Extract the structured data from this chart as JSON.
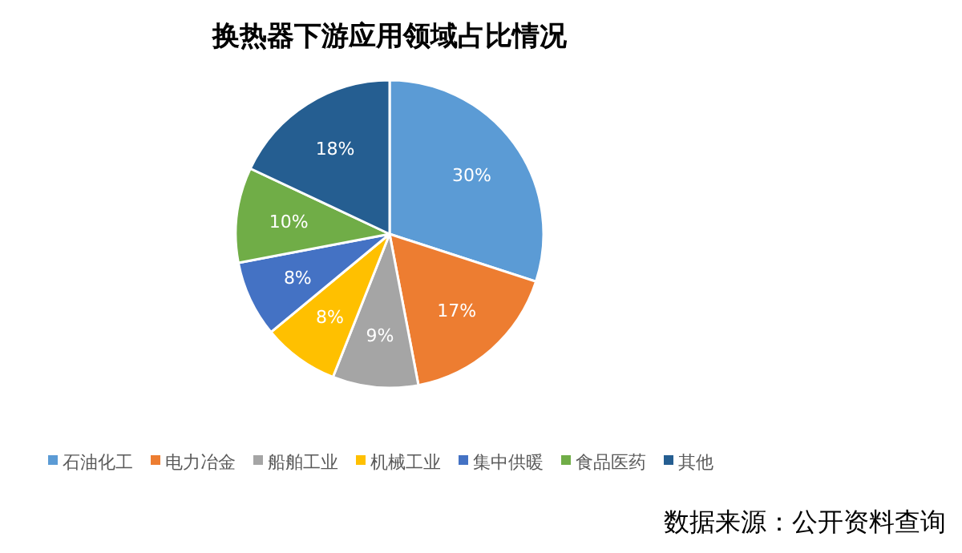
{
  "chart_data": {
    "type": "pie",
    "title": "换热器下游应用领域占比情况",
    "categories": [
      "石油化工",
      "电力冶金",
      "船舶工业",
      "机械工业",
      "集中供暖",
      "食品医药",
      "其他"
    ],
    "values": [
      30,
      17,
      9,
      8,
      8,
      10,
      18
    ],
    "value_labels": [
      "30%",
      "17%",
      "9%",
      "8%",
      "8%",
      "10%",
      "18%"
    ],
    "colors": [
      "#5b9bd5",
      "#ed7d31",
      "#a5a5a5",
      "#ffc000",
      "#4472c4",
      "#70ad47",
      "#255e91"
    ],
    "legend": "bottom",
    "annotations": [
      "数据来源：公开资料查询"
    ]
  }
}
